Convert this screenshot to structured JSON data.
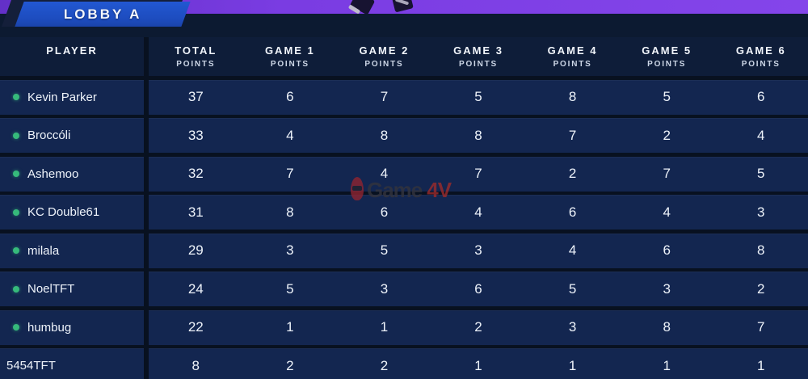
{
  "banner": {
    "label": "LOBBY A"
  },
  "colors": {
    "top_bar_purple": "#7a3ce2",
    "banner_blue": "#1d4cbe",
    "row_navy": "#132650",
    "header_navy": "#0e1d39",
    "background": "#081120",
    "online_dot_green": "#36ba7b",
    "watermark_red": "#9c2b2b"
  },
  "table": {
    "player_header": "PLAYER",
    "columns": [
      {
        "title": "TOTAL",
        "sub": "POINTS"
      },
      {
        "title": "GAME 1",
        "sub": "POINTS"
      },
      {
        "title": "GAME 2",
        "sub": "POINTS"
      },
      {
        "title": "GAME 3",
        "sub": "POINTS"
      },
      {
        "title": "GAME 4",
        "sub": "POINTS"
      },
      {
        "title": "GAME 5",
        "sub": "POINTS"
      },
      {
        "title": "GAME 6",
        "sub": "POINTS"
      }
    ],
    "rows": [
      {
        "name": "Kevin Parker",
        "online": true,
        "points": [
          37,
          6,
          7,
          5,
          8,
          5,
          6
        ]
      },
      {
        "name": "Broccóli",
        "online": true,
        "points": [
          33,
          4,
          8,
          8,
          7,
          2,
          4
        ]
      },
      {
        "name": "Ashemoo",
        "online": true,
        "points": [
          32,
          7,
          4,
          7,
          2,
          7,
          5
        ]
      },
      {
        "name": "KC Double61",
        "online": true,
        "points": [
          31,
          8,
          6,
          4,
          6,
          4,
          3
        ]
      },
      {
        "name": "milala",
        "online": true,
        "points": [
          29,
          3,
          5,
          3,
          4,
          6,
          8
        ]
      },
      {
        "name": "NoelTFT",
        "online": true,
        "points": [
          24,
          5,
          3,
          6,
          5,
          3,
          2
        ]
      },
      {
        "name": "humbug",
        "online": true,
        "points": [
          22,
          1,
          1,
          2,
          3,
          8,
          7
        ]
      },
      {
        "name": "5454TFT",
        "online": false,
        "points": [
          8,
          2,
          2,
          1,
          1,
          1,
          1
        ]
      }
    ]
  },
  "watermark": {
    "text_game": "Game",
    "text_4v": "4V",
    "icon": "game4v-mascot-icon"
  }
}
